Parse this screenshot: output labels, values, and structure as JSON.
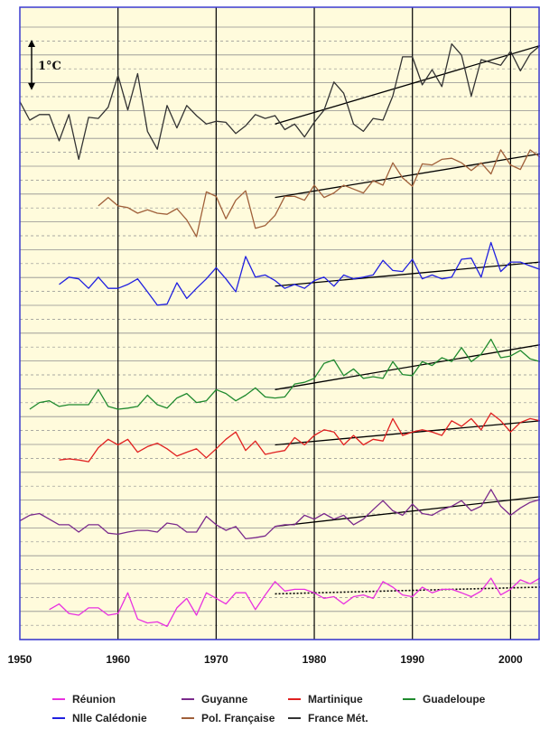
{
  "chart_data": {
    "type": "line",
    "xlim": [
      1950,
      2003
    ],
    "x_ticks": [
      1950,
      1960,
      1970,
      1980,
      1990,
      2000
    ],
    "tick_labels": [
      "1950",
      "1960",
      "1970",
      "1980",
      "1990",
      "2000"
    ],
    "scale_label": "1°C",
    "scale_bar_degC": 1,
    "series_units": "°C",
    "grid": true,
    "legend_position": "bottom",
    "colors": {
      "plot_background": "#fffbdc",
      "plot_border": "#3a3ad0",
      "gridline": "#8f8f8f",
      "decade_line": "#000000",
      "trend": "#000000"
    },
    "series": [
      {
        "name": "France Mét.",
        "color": "#333333",
        "x": [
          1950,
          1951,
          1952,
          1953,
          1954,
          1955,
          1956,
          1957,
          1958,
          1959,
          1960,
          1961,
          1962,
          1963,
          1964,
          1965,
          1966,
          1967,
          1968,
          1969,
          1970,
          1971,
          1972,
          1973,
          1974,
          1975,
          1976,
          1977,
          1978,
          1979,
          1980,
          1981,
          1982,
          1983,
          1984,
          1985,
          1986,
          1987,
          1988,
          1989,
          1990,
          1991,
          1992,
          1993,
          1994,
          1995,
          1996,
          1997,
          1998,
          1999,
          2000,
          2001,
          2002,
          2003
        ],
        "values": [
          12.25,
          11.92,
          12.02,
          12.02,
          11.55,
          12.02,
          11.22,
          11.97,
          11.95,
          12.15,
          12.72,
          12.1,
          12.75,
          11.72,
          11.4,
          12.18,
          11.78,
          12.18,
          12.0,
          11.85,
          11.9,
          11.88,
          11.68,
          11.82,
          12.02,
          11.95,
          12.0,
          11.75,
          11.85,
          11.62,
          11.88,
          12.1,
          12.6,
          12.4,
          11.85,
          11.72,
          11.95,
          11.92,
          12.35,
          13.05,
          13.05,
          12.55,
          12.82,
          12.52,
          13.28,
          13.08,
          12.35,
          13.0,
          12.95,
          12.9,
          13.15,
          12.8,
          13.1,
          13.25
        ],
        "trend": {
          "x": [
            1976,
            2003
          ],
          "y": [
            11.85,
            13.25
          ],
          "style": "solid"
        }
      },
      {
        "name": "Pol. Française",
        "color": "#a0603a",
        "x": [
          1958,
          1959,
          1960,
          1961,
          1962,
          1963,
          1964,
          1965,
          1966,
          1967,
          1968,
          1969,
          1970,
          1971,
          1972,
          1973,
          1974,
          1975,
          1976,
          1977,
          1978,
          1979,
          1980,
          1981,
          1982,
          1983,
          1984,
          1985,
          1986,
          1987,
          1988,
          1989,
          1990,
          1991,
          1992,
          1993,
          1994,
          1995,
          1996,
          1997,
          1998,
          1999,
          2000,
          2001,
          2002,
          2003
        ],
        "values": [
          25.55,
          25.7,
          25.55,
          25.52,
          25.42,
          25.48,
          25.42,
          25.4,
          25.5,
          25.3,
          25.0,
          25.8,
          25.72,
          25.32,
          25.65,
          25.82,
          25.15,
          25.2,
          25.38,
          25.72,
          25.72,
          25.65,
          25.92,
          25.7,
          25.78,
          25.92,
          25.85,
          25.78,
          26.0,
          25.92,
          26.32,
          26.05,
          25.9,
          26.3,
          26.28,
          26.38,
          26.4,
          26.32,
          26.18,
          26.32,
          26.12,
          26.55,
          26.28,
          26.2,
          26.55,
          26.42
        ],
        "trend": {
          "x": [
            1976,
            2003
          ],
          "y": [
            25.7,
            26.48
          ],
          "style": "solid"
        }
      },
      {
        "name": "Nlle Calédonie",
        "color": "#2020e0",
        "x": [
          1954,
          1955,
          1956,
          1957,
          1958,
          1959,
          1960,
          1961,
          1962,
          1963,
          1964,
          1965,
          1966,
          1967,
          1968,
          1969,
          1970,
          1971,
          1972,
          1973,
          1974,
          1975,
          1976,
          1977,
          1978,
          1979,
          1980,
          1981,
          1982,
          1983,
          1984,
          1985,
          1986,
          1987,
          1988,
          1989,
          1990,
          1991,
          1992,
          1993,
          1994,
          1995,
          1996,
          1997,
          1998,
          1999,
          2000,
          2001,
          2002,
          2003
        ],
        "values": [
          22.75,
          22.88,
          22.85,
          22.68,
          22.88,
          22.68,
          22.68,
          22.75,
          22.85,
          22.62,
          22.38,
          22.4,
          22.78,
          22.5,
          22.68,
          22.85,
          23.05,
          22.85,
          22.62,
          23.25,
          22.88,
          22.92,
          22.82,
          22.68,
          22.75,
          22.68,
          22.82,
          22.88,
          22.72,
          22.92,
          22.85,
          22.88,
          22.92,
          23.18,
          23.0,
          22.98,
          23.2,
          22.85,
          22.92,
          22.85,
          22.88,
          23.2,
          23.22,
          22.88,
          23.5,
          22.98,
          23.15,
          23.15,
          23.08,
          23.02
        ],
        "trend": {
          "x": [
            1976,
            2003
          ],
          "y": [
            22.72,
            23.15
          ],
          "style": "solid"
        }
      },
      {
        "name": "Guadeloupe",
        "color": "#1f8a2e",
        "x": [
          1951,
          1952,
          1953,
          1954,
          1955,
          1956,
          1957,
          1958,
          1959,
          1960,
          1961,
          1962,
          1963,
          1964,
          1965,
          1966,
          1967,
          1968,
          1969,
          1970,
          1971,
          1972,
          1973,
          1974,
          1975,
          1976,
          1977,
          1978,
          1979,
          1980,
          1981,
          1982,
          1983,
          1984,
          1985,
          1986,
          1987,
          1988,
          1989,
          1990,
          1991,
          1992,
          1993,
          1994,
          1995,
          1996,
          1997,
          1998,
          1999,
          2000,
          2001,
          2002,
          2003
        ],
        "values": [
          26.0,
          26.12,
          26.15,
          26.05,
          26.08,
          26.08,
          26.08,
          26.35,
          26.05,
          26.0,
          26.02,
          26.05,
          26.25,
          26.08,
          26.02,
          26.2,
          26.28,
          26.12,
          26.15,
          26.35,
          26.28,
          26.15,
          26.25,
          26.38,
          26.22,
          26.2,
          26.22,
          26.45,
          26.48,
          26.55,
          26.82,
          26.88,
          26.6,
          26.72,
          26.55,
          26.58,
          26.55,
          26.85,
          26.62,
          26.6,
          26.85,
          26.78,
          26.92,
          26.85,
          27.1,
          26.85,
          26.98,
          27.25,
          26.92,
          26.95,
          27.05,
          26.9,
          26.85
        ],
        "trend": {
          "x": [
            1976,
            2003
          ],
          "y": [
            26.35,
            27.15
          ],
          "style": "solid"
        }
      },
      {
        "name": "Martinique",
        "color": "#e02020",
        "x": [
          1954,
          1955,
          1956,
          1957,
          1958,
          1959,
          1960,
          1961,
          1962,
          1963,
          1964,
          1965,
          1966,
          1967,
          1968,
          1969,
          1970,
          1971,
          1972,
          1973,
          1974,
          1975,
          1976,
          1977,
          1978,
          1979,
          1980,
          1981,
          1982,
          1983,
          1984,
          1985,
          1986,
          1987,
          1988,
          1989,
          1990,
          1991,
          1992,
          1993,
          1994,
          1995,
          1996,
          1997,
          1998,
          1999,
          2000,
          2001,
          2002,
          2003
        ],
        "values": [
          26.18,
          26.2,
          26.18,
          26.15,
          26.4,
          26.55,
          26.45,
          26.55,
          26.32,
          26.42,
          26.48,
          26.38,
          26.25,
          26.32,
          26.38,
          26.22,
          26.38,
          26.55,
          26.68,
          26.35,
          26.52,
          26.28,
          26.32,
          26.35,
          26.58,
          26.45,
          26.62,
          26.72,
          26.68,
          26.45,
          26.62,
          26.45,
          26.55,
          26.52,
          26.92,
          26.62,
          26.68,
          26.72,
          26.68,
          26.62,
          26.88,
          26.78,
          26.92,
          26.72,
          27.02,
          26.88,
          26.68,
          26.85,
          26.92,
          26.88
        ],
        "trend": {
          "x": [
            1976,
            2003
          ],
          "y": [
            26.45,
            26.88
          ],
          "style": "solid"
        }
      },
      {
        "name": "Guyanne",
        "color": "#7a2a8c",
        "x": [
          1950,
          1951,
          1952,
          1953,
          1954,
          1955,
          1956,
          1957,
          1958,
          1959,
          1960,
          1961,
          1962,
          1963,
          1964,
          1965,
          1966,
          1967,
          1968,
          1969,
          1970,
          1971,
          1972,
          1973,
          1974,
          1975,
          1976,
          1977,
          1978,
          1979,
          1980,
          1981,
          1982,
          1983,
          1984,
          1985,
          1986,
          1987,
          1988,
          1989,
          1990,
          1991,
          1992,
          1993,
          1994,
          1995,
          1996,
          1997,
          1998,
          1999,
          2000,
          2001,
          2002,
          2003
        ],
        "values": [
          26.12,
          26.22,
          26.25,
          26.15,
          26.05,
          26.05,
          25.92,
          26.05,
          26.05,
          25.9,
          25.88,
          25.92,
          25.95,
          25.95,
          25.92,
          26.08,
          26.05,
          25.92,
          25.92,
          26.2,
          26.05,
          25.95,
          26.02,
          25.8,
          25.82,
          25.85,
          26.02,
          26.05,
          26.05,
          26.22,
          26.15,
          26.25,
          26.15,
          26.22,
          26.05,
          26.15,
          26.32,
          26.48,
          26.3,
          26.22,
          26.42,
          26.25,
          26.22,
          26.32,
          26.38,
          26.48,
          26.3,
          26.38,
          26.68,
          26.38,
          26.22,
          26.35,
          26.45,
          26.5
        ],
        "trend": {
          "x": [
            1976,
            2003
          ],
          "y": [
            26.02,
            26.55
          ],
          "style": "solid"
        }
      },
      {
        "name": "Réunion",
        "color": "#e830e0",
        "x": [
          1953,
          1954,
          1955,
          1956,
          1957,
          1958,
          1959,
          1960,
          1961,
          1962,
          1963,
          1964,
          1965,
          1966,
          1967,
          1968,
          1969,
          1970,
          1971,
          1972,
          1973,
          1974,
          1975,
          1976,
          1977,
          1978,
          1979,
          1980,
          1981,
          1982,
          1983,
          1984,
          1985,
          1986,
          1987,
          1988,
          1989,
          1990,
          1991,
          1992,
          1993,
          1994,
          1995,
          1996,
          1997,
          1998,
          1999,
          2000,
          2001,
          2002,
          2003
        ],
        "values": [
          23.22,
          23.32,
          23.15,
          23.12,
          23.25,
          23.25,
          23.12,
          23.15,
          23.52,
          23.05,
          22.98,
          23.0,
          22.92,
          23.25,
          23.42,
          23.12,
          23.52,
          23.42,
          23.32,
          23.52,
          23.52,
          23.22,
          23.48,
          23.72,
          23.55,
          23.58,
          23.58,
          23.52,
          23.42,
          23.45,
          23.32,
          23.45,
          23.48,
          23.42,
          23.72,
          23.62,
          23.48,
          23.45,
          23.62,
          23.52,
          23.58,
          23.58,
          23.52,
          23.45,
          23.55,
          23.78,
          23.48,
          23.58,
          23.75,
          23.68,
          23.78
        ],
        "trend": {
          "x": [
            1976,
            2003
          ],
          "y": [
            23.5,
            23.62
          ],
          "style": "dotted"
        }
      }
    ]
  },
  "legend": [
    {
      "label": "Réunion",
      "color": "#e830e0"
    },
    {
      "label": "Guyanne",
      "color": "#7a2a8c"
    },
    {
      "label": "Martinique",
      "color": "#e02020"
    },
    {
      "label": "Guadeloupe",
      "color": "#1f8a2e"
    },
    {
      "label": "Nlle Calédonie",
      "color": "#2020e0"
    },
    {
      "label": "Pol. Française",
      "color": "#a0603a"
    },
    {
      "label": "France Mét.",
      "color": "#333333"
    }
  ]
}
